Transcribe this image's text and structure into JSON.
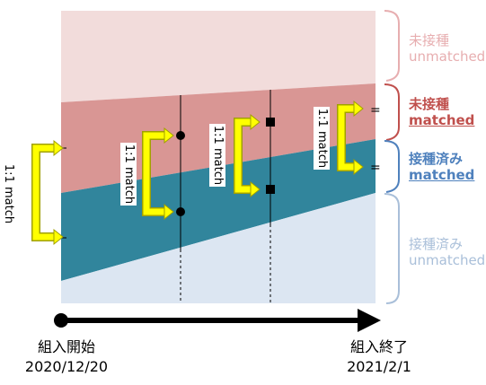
{
  "groups": {
    "unvaccinated_unmatched": {
      "line1": "未接種",
      "line2": "unmatched",
      "color": "#e7aeb0"
    },
    "unvaccinated_matched": {
      "line1": "未接種",
      "line2": "matched",
      "color": "#c0504d"
    },
    "vaccinated_matched": {
      "line1": "接種済み",
      "line2": "matched",
      "color": "#4f81bd"
    },
    "vaccinated_unmatched": {
      "line1": "接種済み",
      "line2": "unmatched",
      "color": "#a9bfd9"
    }
  },
  "match_label": "1:1 match",
  "equals_sign": "=",
  "timeline": {
    "start_label": "組入開始",
    "start_date": "2020/12/20",
    "end_label": "組入終了",
    "end_date": "2021/2/1"
  },
  "colors": {
    "pink_light": "#f2dcdb",
    "pink_mid": "#d99694",
    "teal": "#31859c",
    "blue_light": "#dce6f2",
    "arrow_yellow": "#ffff00",
    "arrow_edge": "#c8c800"
  }
}
